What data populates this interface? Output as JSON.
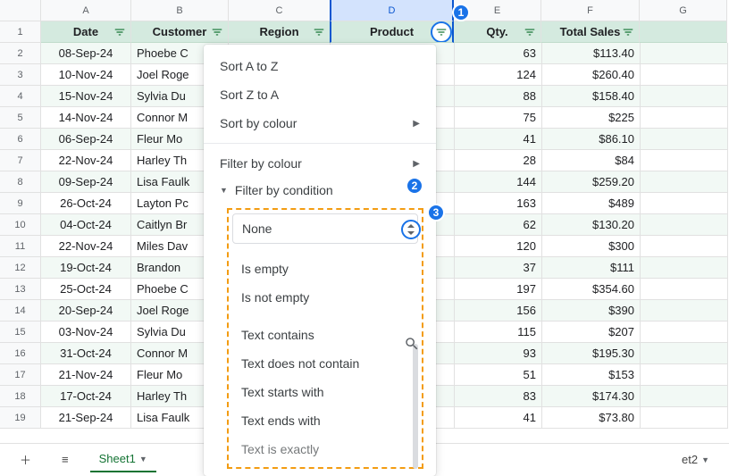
{
  "columns": {
    "A": "A",
    "B": "B",
    "C": "C",
    "D": "D",
    "E": "E",
    "F": "F",
    "G": "G"
  },
  "headers": {
    "date": "Date",
    "customer": "Customer",
    "region": "Region",
    "product": "Product",
    "qty": "Qty.",
    "total": "Total Sales"
  },
  "rows": [
    {
      "n": "1"
    },
    {
      "n": "2",
      "date": "08-Sep-24",
      "cust": "Phoebe C",
      "qty": "63",
      "total": "$113.40"
    },
    {
      "n": "3",
      "date": "10-Nov-24",
      "cust": "Joel Roge",
      "qty": "124",
      "total": "$260.40"
    },
    {
      "n": "4",
      "date": "15-Nov-24",
      "cust": "Sylvia Du",
      "qty": "88",
      "total": "$158.40"
    },
    {
      "n": "5",
      "date": "14-Nov-24",
      "cust": "Connor M",
      "qty": "75",
      "total": "$225"
    },
    {
      "n": "6",
      "date": "06-Sep-24",
      "cust": "Fleur Mo",
      "qty": "41",
      "total": "$86.10"
    },
    {
      "n": "7",
      "date": "22-Nov-24",
      "cust": "Harley Th",
      "qty": "28",
      "total": "$84"
    },
    {
      "n": "8",
      "date": "09-Sep-24",
      "cust": "Lisa Faulk",
      "qty": "144",
      "total": "$259.20"
    },
    {
      "n": "9",
      "date": "26-Oct-24",
      "cust": "Layton Pc",
      "qty": "163",
      "total": "$489"
    },
    {
      "n": "10",
      "date": "04-Oct-24",
      "cust": "Caitlyn Br",
      "qty": "62",
      "total": "$130.20"
    },
    {
      "n": "11",
      "date": "22-Nov-24",
      "cust": "Miles Dav",
      "qty": "120",
      "total": "$300"
    },
    {
      "n": "12",
      "date": "19-Oct-24",
      "cust": "Brandon",
      "qty": "37",
      "total": "$111"
    },
    {
      "n": "13",
      "date": "25-Oct-24",
      "cust": "Phoebe C",
      "qty": "197",
      "total": "$354.60"
    },
    {
      "n": "14",
      "date": "20-Sep-24",
      "cust": "Joel Roge",
      "qty": "156",
      "total": "$390"
    },
    {
      "n": "15",
      "date": "03-Nov-24",
      "cust": "Sylvia Du",
      "qty": "115",
      "total": "$207"
    },
    {
      "n": "16",
      "date": "31-Oct-24",
      "cust": "Connor M",
      "qty": "93",
      "total": "$195.30"
    },
    {
      "n": "17",
      "date": "21-Nov-24",
      "cust": "Fleur Mo",
      "qty": "51",
      "total": "$153"
    },
    {
      "n": "18",
      "date": "17-Oct-24",
      "cust": "Harley Th",
      "qty": "83",
      "total": "$174.30"
    },
    {
      "n": "19",
      "date": "21-Sep-24",
      "cust": "Lisa Faulk",
      "qty": "41",
      "total": "$73.80"
    }
  ],
  "dropdown": {
    "sortAZ": "Sort A to Z",
    "sortZA": "Sort Z to A",
    "sortColor": "Sort by colour",
    "filterColor": "Filter by colour",
    "filterCond": "Filter by condition",
    "none": "None",
    "isEmpty": "Is empty",
    "isNotEmpty": "Is not empty",
    "textContains": "Text contains",
    "textNotContain": "Text does not contain",
    "textStarts": "Text starts with",
    "textEnds": "Text ends with",
    "textExactly": "Text is exactly"
  },
  "badges": {
    "b1": "1",
    "b2": "2",
    "b3": "3"
  },
  "tabs": {
    "sheet1": "Sheet1",
    "sheet2": "et2"
  },
  "colors": {
    "accent": "#1a73e8",
    "headerBg": "#d4eadf",
    "dashBorder": "#f39c12",
    "green": "#137333"
  }
}
